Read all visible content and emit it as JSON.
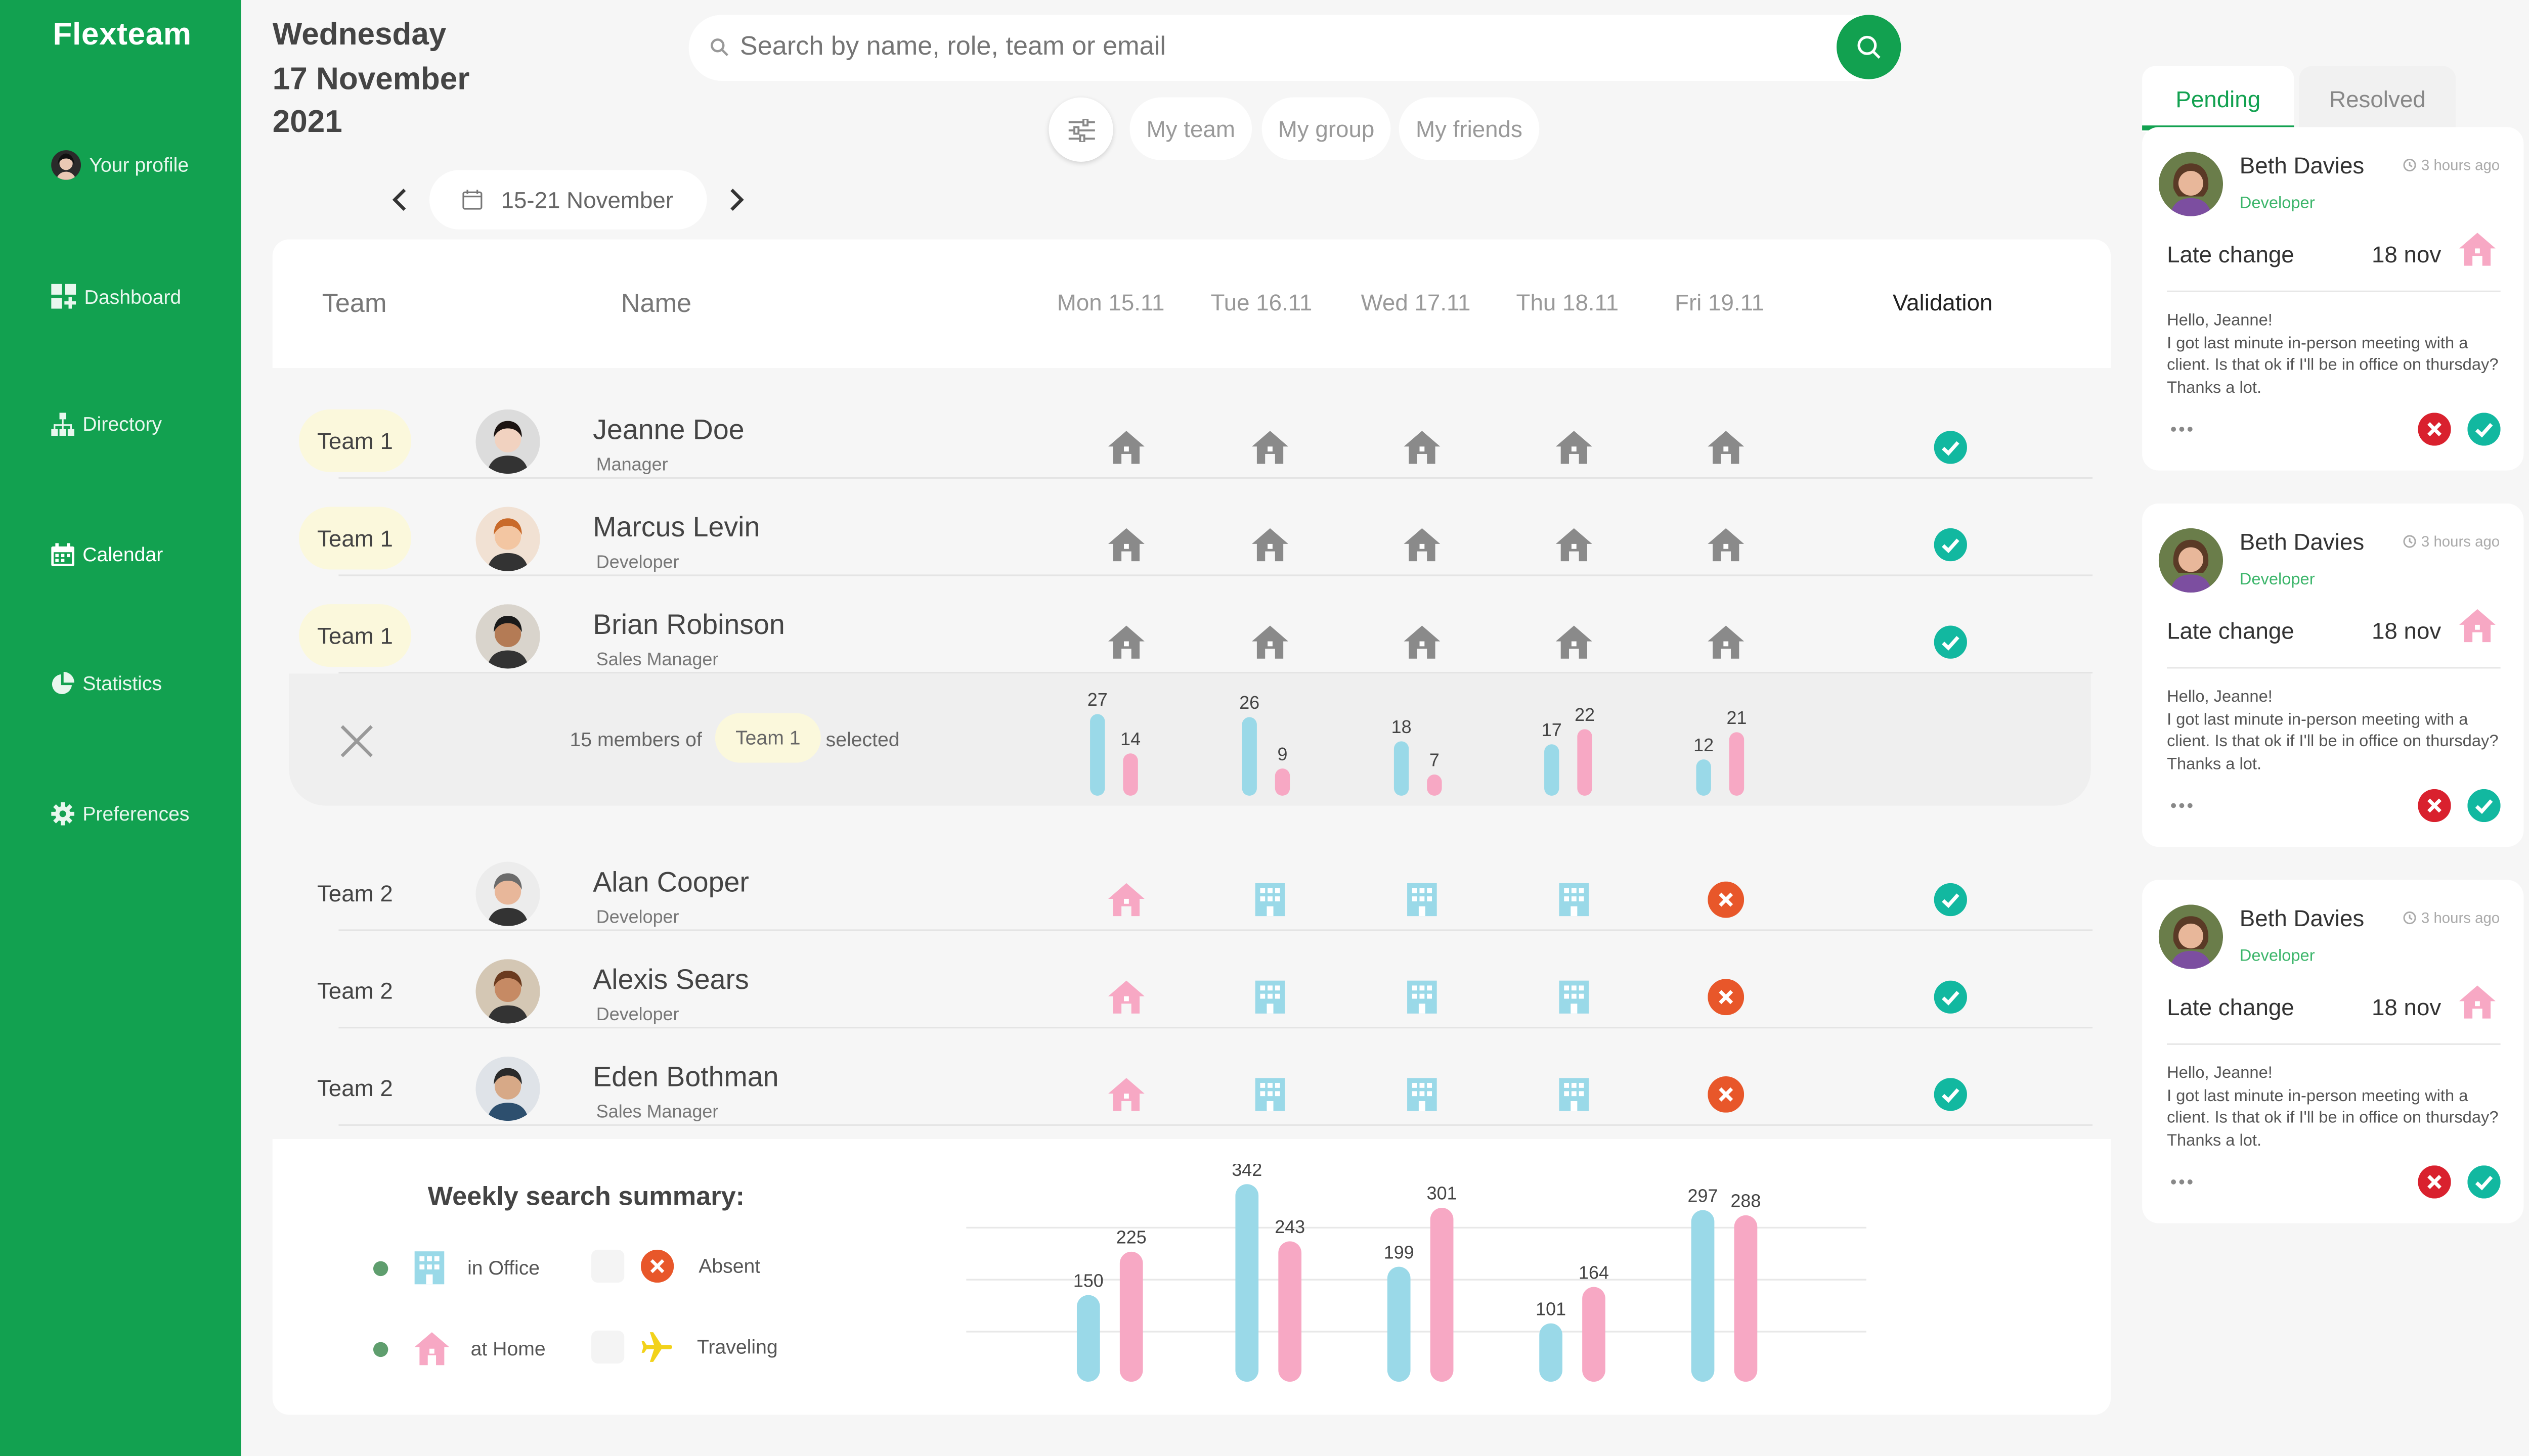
{
  "app": {
    "brand": "Flexteam"
  },
  "sidebar": {
    "items": [
      {
        "label": "Your profile",
        "icon": "user-avatar"
      },
      {
        "label": "Dashboard",
        "icon": "dashboard-icon"
      },
      {
        "label": "Directory",
        "icon": "directory-icon"
      },
      {
        "label": "Calendar",
        "icon": "calendar-icon"
      },
      {
        "label": "Statistics",
        "icon": "pie-chart-icon"
      },
      {
        "label": "Preferences",
        "icon": "gear-icon"
      }
    ]
  },
  "header": {
    "weekday": "Wednesday",
    "date": "17 November",
    "year": "2021",
    "search_placeholder": "Search by name, role, team or email",
    "filters": [
      "My team",
      "My group",
      "My friends"
    ],
    "week_range": "15-21 November"
  },
  "table": {
    "headers": {
      "team": "Team",
      "name": "Name",
      "validation": "Validation"
    },
    "days": [
      "Mon 15.11",
      "Tue 16.11",
      "Wed 17.11",
      "Thu 18.11",
      "Fri 19.11"
    ],
    "rows": [
      {
        "team": "Team 1",
        "name": "Jeanne Doe",
        "role": "Manager",
        "days": [
          "home-gray",
          "home-gray",
          "home-gray",
          "home-gray",
          "home-gray"
        ],
        "validated": true
      },
      {
        "team": "Team 1",
        "name": "Marcus Levin",
        "role": "Developer",
        "days": [
          "home-gray",
          "home-gray",
          "home-gray",
          "home-gray",
          "home-gray"
        ],
        "validated": true
      },
      {
        "team": "Team 1",
        "name": "Brian Robinson",
        "role": "Sales Manager",
        "days": [
          "home-gray",
          "home-gray",
          "home-gray",
          "home-gray",
          "home-gray"
        ],
        "validated": true
      },
      {
        "team": "Team 2",
        "name": "Alan Cooper",
        "role": "Developer",
        "days": [
          "home-pink",
          "office",
          "office",
          "office",
          "absent"
        ],
        "validated": true
      },
      {
        "team": "Team 2",
        "name": "Alexis Sears",
        "role": "Developer",
        "days": [
          "home-pink",
          "office",
          "office",
          "office",
          "absent"
        ],
        "validated": true
      },
      {
        "team": "Team 2",
        "name": "Eden Bothman",
        "role": "Sales Manager",
        "days": [
          "home-pink",
          "office",
          "office",
          "office",
          "absent"
        ],
        "validated": true
      }
    ],
    "selection": {
      "prefix": "15 members of",
      "team": "Team 1",
      "suffix": "selected",
      "bars": [
        {
          "office": 27,
          "home": 14
        },
        {
          "office": 26,
          "home": 9
        },
        {
          "office": 18,
          "home": 7
        },
        {
          "office": 17,
          "home": 22
        },
        {
          "office": 12,
          "home": 21
        }
      ]
    }
  },
  "summary": {
    "title": "Weekly search summary:",
    "legend": {
      "office": "in Office",
      "home": "at Home",
      "absent": "Absent",
      "traveling": "Traveling"
    },
    "colors": {
      "office": "#9ad9e8",
      "home": "#f7a8c4",
      "absent": "#e8572a",
      "check": "#12b8a0",
      "brand": "#12a150"
    }
  },
  "chart_data": {
    "type": "bar",
    "categories": [
      "",
      "",
      "",
      "",
      ""
    ],
    "series": [
      {
        "values": [
          150,
          342,
          199,
          101,
          297
        ]
      },
      {
        "values": [
          225,
          243,
          301,
          164,
          288
        ]
      }
    ],
    "ylim": [
      0,
      360
    ],
    "grid": true
  },
  "notifications": {
    "tabs": [
      "Pending",
      "Resolved"
    ],
    "items": [
      {
        "name": "Beth Davies",
        "time": "3 hours ago",
        "role": "Developer",
        "type": "Late change",
        "date": "18 nov",
        "message": "Hello, Jeanne!\nI got last minute in-person meeting with a client. Is that ok if I'll be in office on thursday? Thanks a lot."
      },
      {
        "name": "Beth Davies",
        "time": "3 hours ago",
        "role": "Developer",
        "type": "Late change",
        "date": "18 nov",
        "message": "Hello, Jeanne!\nI got last minute in-person meeting with a client. Is that ok if I'll be in office on thursday? Thanks a lot."
      },
      {
        "name": "Beth Davies",
        "time": "3 hours ago",
        "role": "Developer",
        "type": "Late change",
        "date": "18 nov",
        "message": "Hello, Jeanne!\nI got last minute in-person meeting with a client. Is that ok if I'll be in office on thursday? Thanks a lot."
      }
    ]
  }
}
